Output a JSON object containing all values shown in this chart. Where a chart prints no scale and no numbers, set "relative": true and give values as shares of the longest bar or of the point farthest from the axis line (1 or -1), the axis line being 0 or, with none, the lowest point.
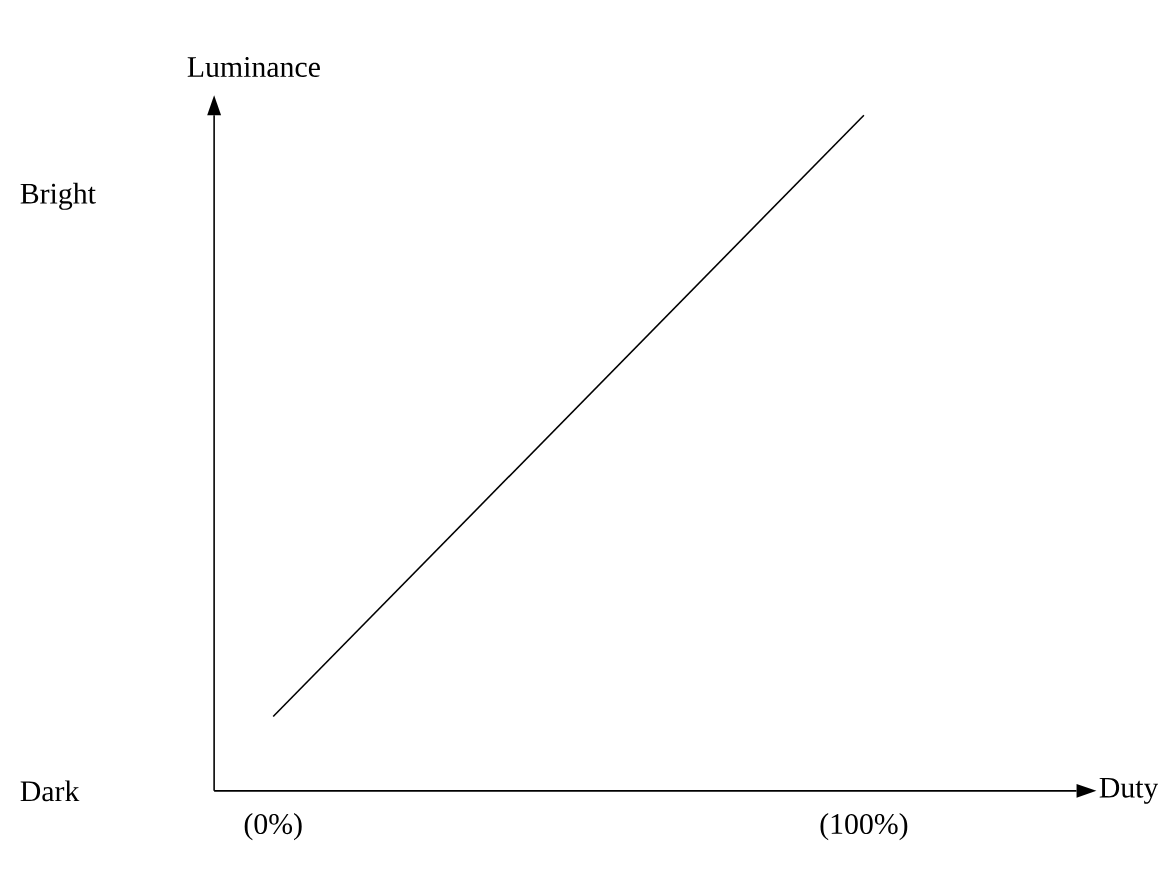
{
  "chart_data": {
    "type": "line",
    "xlabel": "Duty",
    "ylabel": "Luminance",
    "relative": true,
    "x": [
      0,
      100
    ],
    "values": [
      0.11,
      1
    ],
    "color": "#000000",
    "xlim": [
      -10,
      136
    ],
    "xticks": [
      {
        "value": 0,
        "label": "(0%)"
      },
      {
        "value": 100,
        "label": "(100%)"
      }
    ],
    "annotations": [
      "Dark",
      "Bright"
    ]
  }
}
